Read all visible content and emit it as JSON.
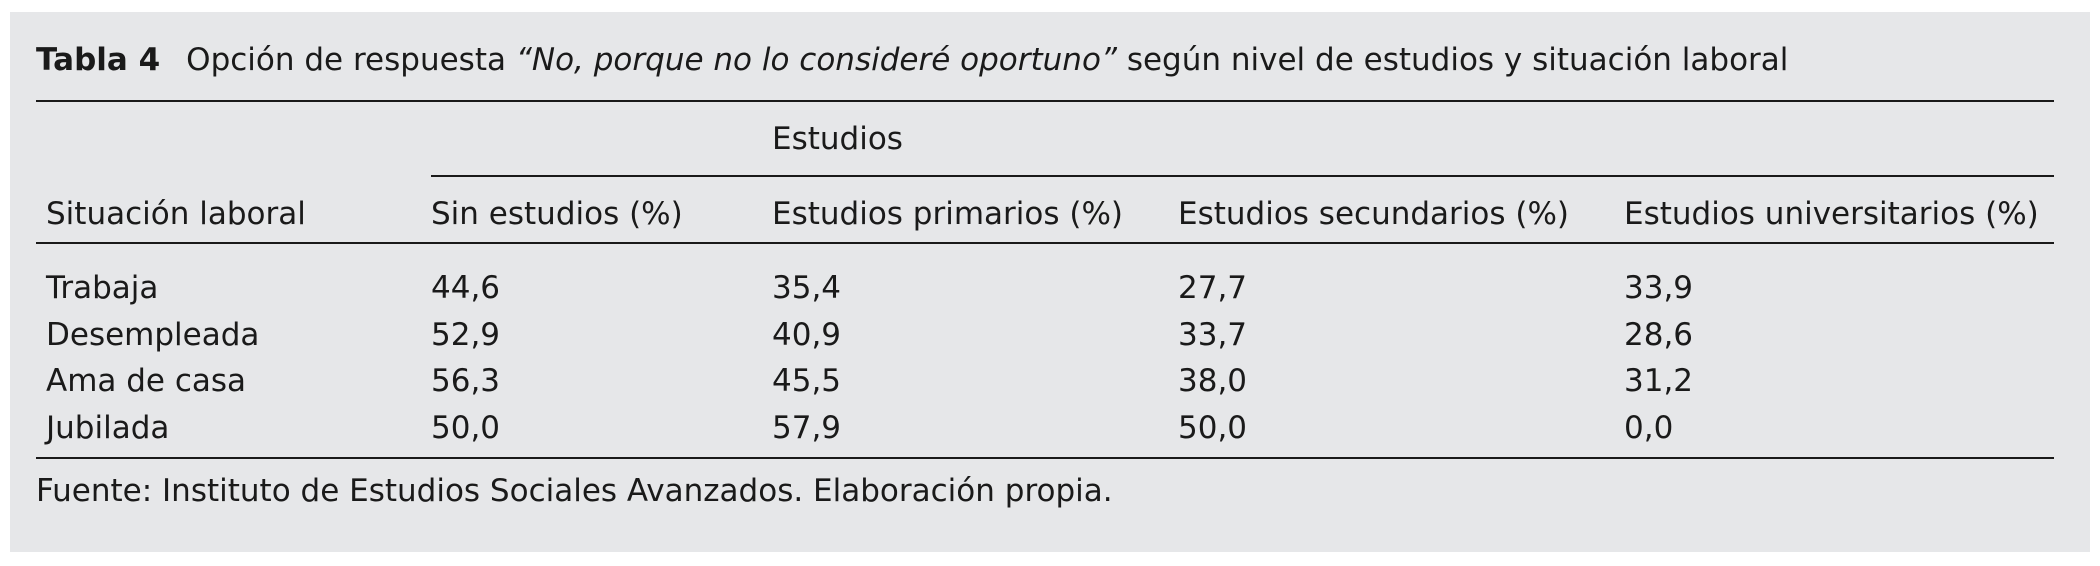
{
  "caption": {
    "label": "Tabla 4",
    "text_before": "Opción de respuesta ",
    "text_italic": "“No, porque no lo consideré oportuno”",
    "text_after": " según nivel de estudios y situación laboral"
  },
  "table": {
    "group_header": "Estudios",
    "row_header": "Situación laboral",
    "columns": [
      "Sin estudios (%)",
      "Estudios primarios (%)",
      "Estudios secundarios (%)",
      "Estudios universitarios (%)"
    ],
    "rows": [
      {
        "label": "Trabaja",
        "values": [
          "44,6",
          "35,4",
          "27,7",
          "33,9"
        ]
      },
      {
        "label": "Desempleada",
        "values": [
          "52,9",
          "40,9",
          "33,7",
          "28,6"
        ]
      },
      {
        "label": "Ama de casa",
        "values": [
          "56,3",
          "45,5",
          "38,0",
          "31,2"
        ]
      },
      {
        "label": "Jubilada",
        "values": [
          "50,0",
          "57,9",
          "50,0",
          "0,0"
        ]
      }
    ]
  },
  "source": "Fuente: Instituto de Estudios Sociales Avanzados. Elaboración propia."
}
